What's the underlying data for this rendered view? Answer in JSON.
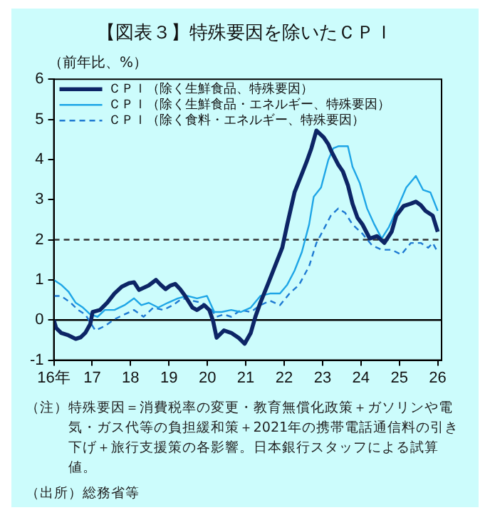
{
  "chart_data": {
    "type": "line",
    "title": "【図表３】特殊要因を除いたＣＰＩ",
    "ylabel": "（前年比、%）",
    "xlim": [
      16,
      26.1
    ],
    "xticks": [
      {
        "value": 16,
        "label": "16年"
      },
      17,
      18,
      19,
      20,
      21,
      22,
      23,
      24,
      25,
      26
    ],
    "ylim": [
      -1,
      6
    ],
    "yticks": [
      -1,
      0,
      1,
      2,
      3,
      4,
      5,
      6
    ],
    "grid": false,
    "legend": "top left",
    "line_style": "solid",
    "marker": "none",
    "series": [
      {
        "name": "ＣＰＩ（除く生鮮食品、特殊要因）",
        "color": "#0d2566",
        "x": [
          16,
          16.06,
          16.19,
          16.38,
          16.57,
          16.7,
          16.82,
          16.95,
          17.01,
          17.2,
          17.39,
          17.58,
          17.77,
          17.96,
          18.09,
          18.22,
          18.47,
          18.66,
          18.78,
          18.91,
          19.04,
          19.16,
          19.29,
          19.42,
          19.61,
          19.73,
          19.92,
          20.05,
          20.15,
          20.24,
          20.43,
          20.62,
          20.81,
          20.97,
          21.13,
          21.25,
          21.38,
          21.57,
          21.76,
          21.95,
          22.08,
          22.27,
          22.46,
          22.58,
          22.71,
          22.84,
          23.03,
          23.15,
          23.22,
          23.41,
          23.53,
          23.66,
          23.78,
          23.91,
          24.04,
          24.23,
          24.42,
          24.61,
          24.8,
          24.92,
          25.11,
          25.3,
          25.43,
          25.56,
          25.68,
          25.87,
          26
        ],
        "values": [
          0,
          -0.2,
          -0.32,
          -0.38,
          -0.47,
          -0.43,
          -0.32,
          -0.1,
          0.2,
          0.25,
          0.43,
          0.66,
          0.83,
          0.92,
          0.94,
          0.75,
          0.86,
          1,
          0.88,
          0.77,
          0.86,
          0.9,
          0.77,
          0.6,
          0.31,
          0.25,
          0.37,
          0.25,
          -0.03,
          -0.44,
          -0.26,
          -0.32,
          -0.44,
          -0.59,
          -0.32,
          0.08,
          0.43,
          0.88,
          1.34,
          1.8,
          2.38,
          3.18,
          3.64,
          3.93,
          4.28,
          4.72,
          4.55,
          4.38,
          4.22,
          3.87,
          3.7,
          3.36,
          2.9,
          2.55,
          2.38,
          2.03,
          2.09,
          1.92,
          2.2,
          2.6,
          2.84,
          2.9,
          2.95,
          2.86,
          2.72,
          2.6,
          2.2
        ]
      },
      {
        "name": "ＣＰＩ（除く生鮮食品・エネルギー、特殊要因）",
        "color": "#1ea5e6",
        "x": [
          16,
          16.19,
          16.38,
          16.57,
          16.76,
          16.95,
          17.14,
          17.33,
          17.58,
          17.84,
          18.09,
          18.28,
          18.47,
          18.72,
          18.97,
          19.23,
          19.48,
          19.73,
          19.99,
          20.18,
          20.37,
          20.62,
          20.87,
          21.13,
          21.38,
          21.63,
          21.89,
          22.08,
          22.27,
          22.46,
          22.65,
          22.77,
          22.96,
          23.15,
          23.28,
          23.41,
          23.66,
          23.78,
          23.97,
          24.16,
          24.35,
          24.54,
          24.73,
          24.92,
          25.18,
          25.43,
          25.62,
          25.81,
          26
        ],
        "values": [
          1,
          0.88,
          0.71,
          0.43,
          0.31,
          0.14,
          0.08,
          0.25,
          0.25,
          0.37,
          0.54,
          0.37,
          0.43,
          0.31,
          0.43,
          0.54,
          0.6,
          0.54,
          0.6,
          0.2,
          0.2,
          0.25,
          0.2,
          0.31,
          0.6,
          0.66,
          0.66,
          0.88,
          1.23,
          1.69,
          2.38,
          3.07,
          3.3,
          3.99,
          4.28,
          4.33,
          4.33,
          3.82,
          3.41,
          2.78,
          2.38,
          2.03,
          2.32,
          2.72,
          3.3,
          3.59,
          3.24,
          3.18,
          2.72
        ]
      },
      {
        "name": "ＣＰＩ（除く食料・エネルギー、特殊要因）",
        "color": "#1e7ad2",
        "line_style": "dashed",
        "x": [
          16,
          16.19,
          16.44,
          16.63,
          16.82,
          17.08,
          17.33,
          17.58,
          17.84,
          18.09,
          18.34,
          18.59,
          18.85,
          19.1,
          19.35,
          19.61,
          19.86,
          20.11,
          20.24,
          20.43,
          20.62,
          20.87,
          21.13,
          21.38,
          21.63,
          21.89,
          22.14,
          22.39,
          22.65,
          22.84,
          23.03,
          23.22,
          23.41,
          23.59,
          23.78,
          24.04,
          24.29,
          24.54,
          24.8,
          25.05,
          25.3,
          25.56,
          25.75,
          25.87,
          26
        ],
        "values": [
          0.6,
          0.6,
          0.43,
          0.25,
          0.14,
          -0.26,
          -0.15,
          0.02,
          0.14,
          0.25,
          0.08,
          0.31,
          0.25,
          0.37,
          0.54,
          0.48,
          0.43,
          0.25,
          0.08,
          0.14,
          0.08,
          0.25,
          0.2,
          0.37,
          0.48,
          0.37,
          0.66,
          0.88,
          1.34,
          1.92,
          2.26,
          2.61,
          2.78,
          2.67,
          2.38,
          2.15,
          1.86,
          1.75,
          1.75,
          1.63,
          1.92,
          1.92,
          1.8,
          1.92,
          1.69
        ]
      }
    ],
    "ref_lines": [
      {
        "axis": "y",
        "value": 2,
        "color": "#333333",
        "line_style": "dashed"
      },
      {
        "axis": "y",
        "value": 0,
        "color": "#000000",
        "line_style": "solid"
      }
    ],
    "annotations": [
      "（注）特殊要因＝消費税率の変更・教育無償化政策＋ガソリンや電気・ガス代等の負担緩和策＋2021年の携帯電話通信料の引き下げ＋旅行支援策の各影響。日本銀行スタッフによる試算値。",
      "（出所）総務省等"
    ]
  }
}
